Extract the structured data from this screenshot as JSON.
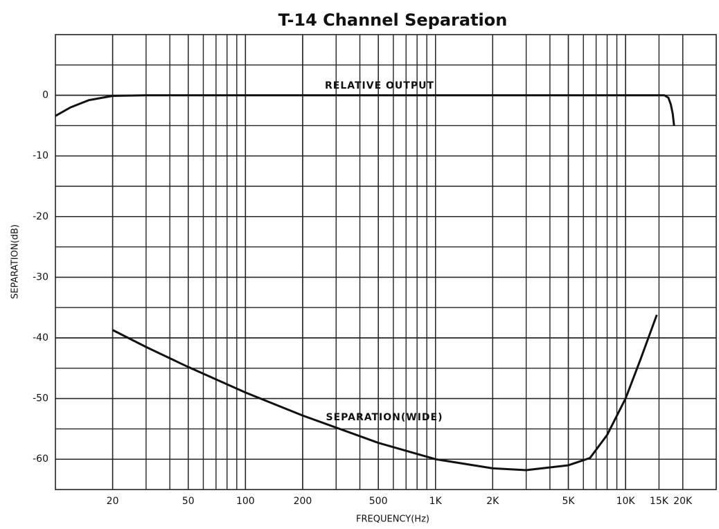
{
  "chart_data": {
    "type": "line",
    "title": "T-14 Channel Separation",
    "xlabel": "FREQUENCY(Hz)",
    "ylabel": "SEPARATION(dB)",
    "xscale": "log",
    "xlim": [
      10,
      30000
    ],
    "ylim": [
      -65,
      10
    ],
    "xticks": [
      20,
      50,
      100,
      200,
      500,
      {
        "value": 1000,
        "label": "1K"
      },
      {
        "value": 2000,
        "label": "2K"
      },
      {
        "value": 5000,
        "label": "5K"
      },
      {
        "value": 10000,
        "label": "10K"
      },
      {
        "value": 15000,
        "label": "15K"
      },
      {
        "value": 20000,
        "label": "20K"
      }
    ],
    "yticks": [
      0,
      -10,
      -20,
      -30,
      -40,
      -50,
      -60
    ],
    "grid": true,
    "series": [
      {
        "name": "RELATIVE OUTPUT",
        "color": "#111111",
        "x": [
          10,
          12,
          15,
          20,
          30,
          100,
          1000,
          10000,
          15000,
          16000,
          16800,
          17300,
          17700,
          18000
        ],
        "values": [
          -3.4,
          -2.0,
          -0.8,
          -0.1,
          0,
          0,
          0,
          0,
          0,
          0,
          -0.4,
          -1.5,
          -3,
          -5
        ]
      },
      {
        "name": "SEPARATION(WIDE)",
        "color": "#111111",
        "x": [
          20,
          30,
          50,
          100,
          200,
          500,
          1000,
          2000,
          3000,
          5000,
          6500,
          8000,
          10000,
          12000,
          14600
        ],
        "values": [
          -38.7,
          -41.5,
          -44.8,
          -49,
          -52.8,
          -57.3,
          -60,
          -61.5,
          -61.8,
          -61,
          -59.8,
          -56,
          -50,
          -43.5,
          -36.2
        ]
      }
    ]
  }
}
